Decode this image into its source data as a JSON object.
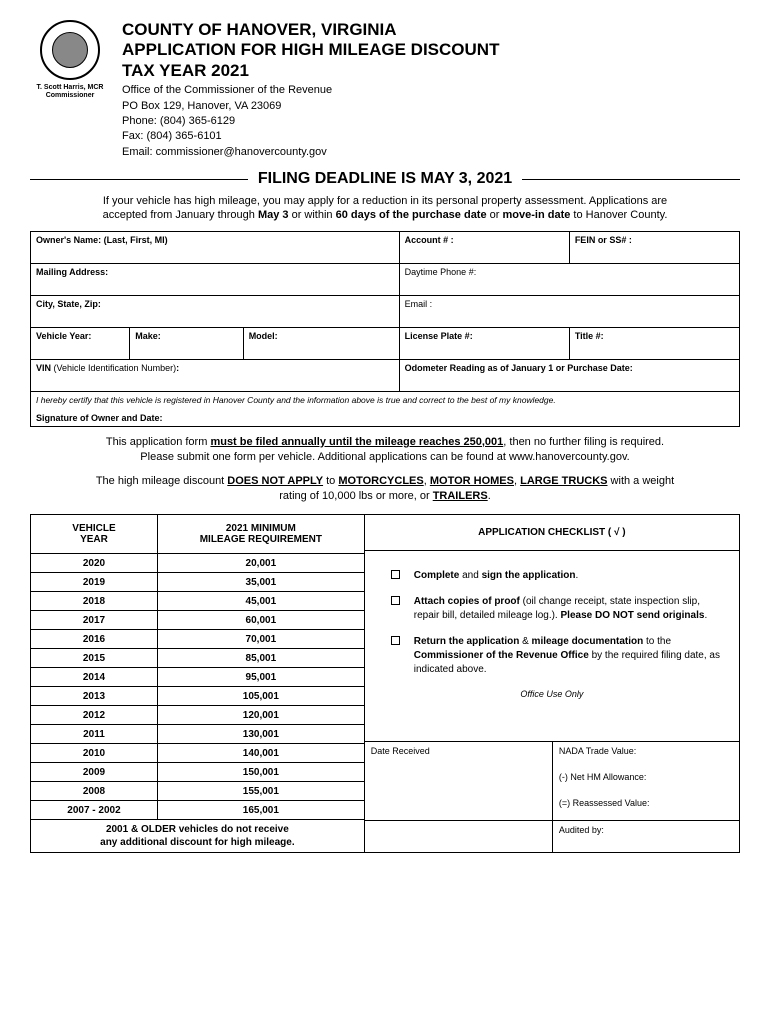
{
  "header": {
    "county_line1": "COUNTY OF HANOVER, VIRGINIA",
    "county_line2": "APPLICATION FOR HIGH MILEAGE DISCOUNT",
    "county_line3": "TAX YEAR 2021",
    "office1": "Office of the Commissioner of the Revenue",
    "office2": "PO Box 129, Hanover, VA 23069",
    "phone": "Phone: (804) 365-6129",
    "fax": "Fax: (804) 365-6101",
    "email": "Email: commissioner@hanovercounty.gov",
    "commissioner_name": "T. Scott Harris, MCR",
    "commissioner_title": "Commissioner"
  },
  "deadline": "FILING DEADLINE IS MAY 3, 2021",
  "intro": {
    "text1": "If your vehicle has high mileage, you may apply for a reduction in its personal property assessment. Applications are",
    "text2a": "accepted from January through ",
    "text2b": "May 3",
    "text2c": " or within ",
    "text2d": "60 days of the purchase date",
    "text2e": " or ",
    "text2f": "move-in date",
    "text2g": " to Hanover County."
  },
  "form": {
    "owner": "Owner's Name: (Last, First, MI)",
    "account": "Account # :",
    "fein": "FEIN or SS# :",
    "mailing": "Mailing Address:",
    "phone": "Daytime Phone #:",
    "city": "City, State, Zip:",
    "email": "Email :",
    "vyear": "Vehicle Year:",
    "make": "Make:",
    "model": "Model:",
    "plate": "License Plate #:",
    "title": "Title #:",
    "vin_lbl": "VIN ",
    "vin_sub": "(Vehicle Identification Number)",
    "vin_colon": ":",
    "odometer": "Odometer Reading as of January 1 or Purchase Date:",
    "cert": "I hereby certify that this vehicle is registered in Hanover County and the information above is true and correct to the best of my knowledge.",
    "sig": "Signature of Owner and Date:"
  },
  "mid": {
    "l1a": "This application form ",
    "l1b": "must be filed annually until the mileage reaches 250,001",
    "l1c": ", then no further filing is required.",
    "l2": "Please submit one form per vehicle. Additional applications can be found at www.hanovercounty.gov."
  },
  "excl": {
    "a": "The high mileage discount ",
    "b": "DOES NOT APPLY",
    "c": " to ",
    "d": "MOTORCYCLES",
    "e": ", ",
    "f": "MOTOR HOMES",
    "g": ", ",
    "h": "LARGE TRUCKS",
    "i": " with a weight",
    "j": "rating of 10,000 lbs or more, or ",
    "k": "TRAILERS",
    "l": "."
  },
  "mileage": {
    "h1a": "VEHICLE",
    "h1b": "YEAR",
    "h2a": "2021 MINIMUM",
    "h2b": "MILEAGE REQUIREMENT",
    "rows": [
      {
        "y": "2020",
        "m": "20,001"
      },
      {
        "y": "2019",
        "m": "35,001"
      },
      {
        "y": "2018",
        "m": "45,001"
      },
      {
        "y": "2017",
        "m": "60,001"
      },
      {
        "y": "2016",
        "m": "70,001"
      },
      {
        "y": "2015",
        "m": "85,001"
      },
      {
        "y": "2014",
        "m": "95,001"
      },
      {
        "y": "2013",
        "m": "105,001"
      },
      {
        "y": "2012",
        "m": "120,001"
      },
      {
        "y": "2011",
        "m": "130,001"
      },
      {
        "y": "2010",
        "m": "140,001"
      },
      {
        "y": "2009",
        "m": "150,001"
      },
      {
        "y": "2008",
        "m": "155,001"
      },
      {
        "y": "2007 - 2002",
        "m": "165,001"
      }
    ],
    "older1": "2001 & OLDER vehicles do not receive",
    "older2": "any additional discount for high mileage."
  },
  "checklist": {
    "header": "APPLICATION CHECKLIST  ( √ )",
    "i1a": "Complete ",
    "i1b": "and ",
    "i1c": "sign the application",
    "i1d": ".",
    "i2a": "Attach copies of proof ",
    "i2b": "(oil change receipt, state inspection slip, repair bill, detailed mileage log.). ",
    "i2c": "Please DO NOT send originals",
    "i2d": ".",
    "i3a": "Return the application ",
    "i3b": "& ",
    "i3c": "mileage documentation ",
    "i3d": "to the ",
    "i3e": "Commissioner of the Revenue Office ",
    "i3f": "by the required filing date, as indicated above.",
    "office_use": "Office Use Only",
    "date_rec": "Date Received",
    "nada": "NADA Trade Value:",
    "net_hm": "(-) Net HM Allowance:",
    "reassessed": "(=) Reassessed Value:",
    "audited": "Audited by:"
  }
}
